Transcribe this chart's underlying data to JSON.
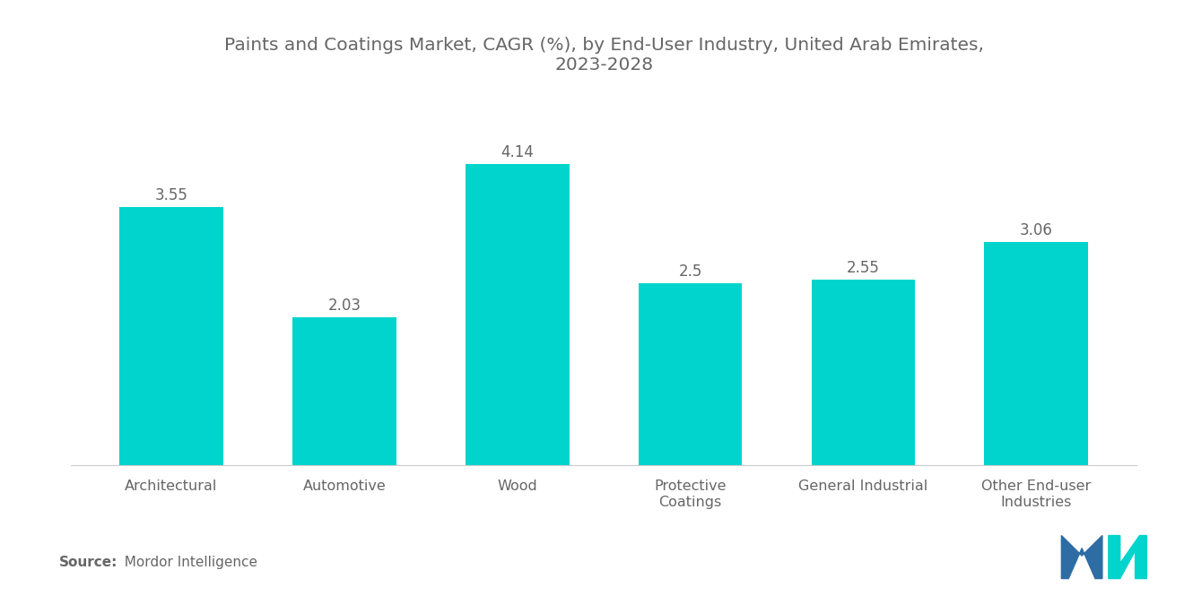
{
  "title": "Paints and Coatings Market, CAGR (%), by End-User Industry, United Arab Emirates,\n2023-2028",
  "categories": [
    "Architectural",
    "Automotive",
    "Wood",
    "Protective\nCoatings",
    "General Industrial",
    "Other End-user\nIndustries"
  ],
  "values": [
    3.55,
    2.03,
    4.14,
    2.5,
    2.55,
    3.06
  ],
  "bar_color": "#00D4CC",
  "title_fontsize": 14.5,
  "label_fontsize": 11.5,
  "value_fontsize": 12,
  "background_color": "#ffffff",
  "ylim": [
    0,
    5.0
  ],
  "bar_width": 0.6,
  "title_color": "#666666",
  "label_color": "#666666",
  "value_color": "#666666",
  "source_bold": "Source:",
  "source_rest": "  Mordor Intelligence",
  "source_fontsize": 11,
  "axis_line_color": "#cccccc",
  "logo_blue": "#2e6da4",
  "logo_teal": "#00D4CC"
}
